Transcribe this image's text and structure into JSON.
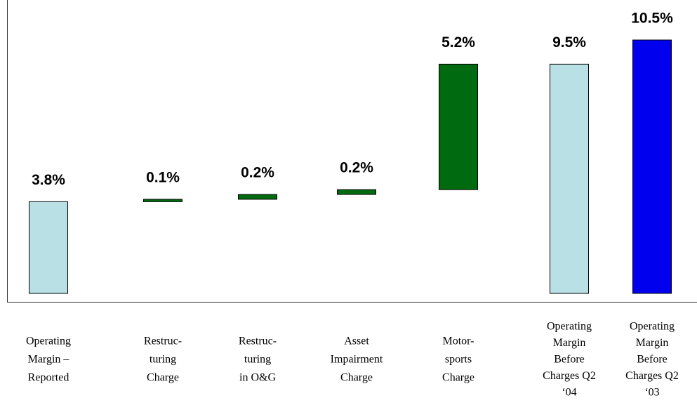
{
  "chart_data": {
    "type": "waterfall",
    "categories": [
      [
        "Operating",
        "Margin –",
        "Reported"
      ],
      [
        "Restruc-",
        "turing",
        "Charge"
      ],
      [
        "Restruc-",
        "turing",
        "in O&G"
      ],
      [
        "Asset",
        "Impairment",
        "Charge"
      ],
      [
        "Motor-",
        "sports",
        "Charge"
      ],
      [
        "Operating",
        "Margin",
        "Before",
        "Charges Q2",
        "‘04"
      ],
      [
        "Operating",
        "Margin",
        "Before",
        "Charges Q2",
        "‘03"
      ]
    ],
    "values": [
      3.8,
      0.1,
      0.2,
      0.2,
      5.2,
      9.5,
      10.5
    ],
    "value_labels": [
      "3.8%",
      "0.1%",
      "0.2%",
      "0.2%",
      "5.2%",
      "9.5%",
      "10.5%"
    ],
    "measure": [
      "absolute",
      "relative",
      "relative",
      "relative",
      "relative",
      "total",
      "absolute"
    ],
    "colors": [
      "#b9e0e4",
      "#006a10",
      "#006a10",
      "#006a10",
      "#006a10",
      "#b9e0e4",
      "#0000ee"
    ]
  }
}
